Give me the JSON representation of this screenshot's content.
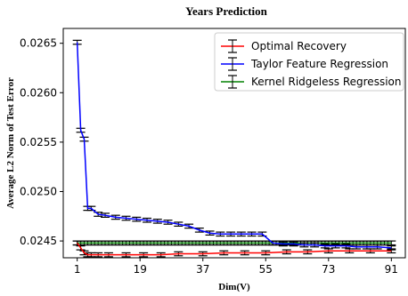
{
  "chart_data": {
    "type": "line",
    "title": "Years Prediction",
    "xlabel": "Dim(V)",
    "ylabel": "Average L2 Norm of Test Error",
    "xlim": [
      -3,
      95
    ],
    "ylim": [
      0.02433,
      0.02665
    ],
    "xticks": [
      1,
      19,
      37,
      55,
      73,
      91
    ],
    "xtick_labels": [
      "1",
      "19",
      "37",
      "55",
      "73",
      "91"
    ],
    "yticks": [
      0.0245,
      0.025,
      0.0255,
      0.026,
      0.0265
    ],
    "ytick_labels": [
      "0.0245",
      "0.0250",
      "0.0255",
      "0.0260",
      "0.0265"
    ],
    "grid": false,
    "legend_position": "top-right",
    "series": [
      {
        "name": "Optimal Recovery",
        "color": "#ff0000",
        "x": [
          1,
          2,
          3,
          4,
          5,
          7,
          10,
          15,
          20,
          25,
          30,
          37,
          43,
          49,
          55,
          61,
          67,
          73,
          79,
          85,
          91
        ],
        "y": [
          0.02448,
          0.02443,
          0.02438,
          0.02436,
          0.02436,
          0.02436,
          0.02436,
          0.02436,
          0.02436,
          0.02436,
          0.02437,
          0.02437,
          0.02438,
          0.02438,
          0.02438,
          0.02439,
          0.02439,
          0.0244,
          0.0244,
          0.0244,
          0.0244
        ],
        "err": 2e-05
      },
      {
        "name": "Taylor Feature Regression",
        "color": "#0000ff",
        "x": [
          1,
          2,
          3,
          4,
          5,
          7,
          9,
          12,
          15,
          18,
          21,
          24,
          27,
          30,
          33,
          36,
          39,
          42,
          45,
          48,
          51,
          54,
          57,
          60,
          63,
          66,
          69,
          72,
          75,
          78,
          81,
          84,
          87,
          91
        ],
        "y": [
          0.02651,
          0.02562,
          0.02553,
          0.02483,
          0.02483,
          0.02477,
          0.02476,
          0.02474,
          0.02473,
          0.02472,
          0.02471,
          0.0247,
          0.02469,
          0.02467,
          0.02465,
          0.02461,
          0.02458,
          0.02457,
          0.02457,
          0.02457,
          0.02457,
          0.02457,
          0.02448,
          0.02447,
          0.02447,
          0.02446,
          0.02446,
          0.02445,
          0.02445,
          0.02445,
          0.02444,
          0.02444,
          0.02444,
          0.02443
        ],
        "err": 2e-05
      },
      {
        "name": "Kernel Ridgeless Regression",
        "color": "#008000",
        "x": [
          1,
          91
        ],
        "y": [
          0.02448,
          0.02448
        ],
        "err": 2e-05
      }
    ]
  }
}
